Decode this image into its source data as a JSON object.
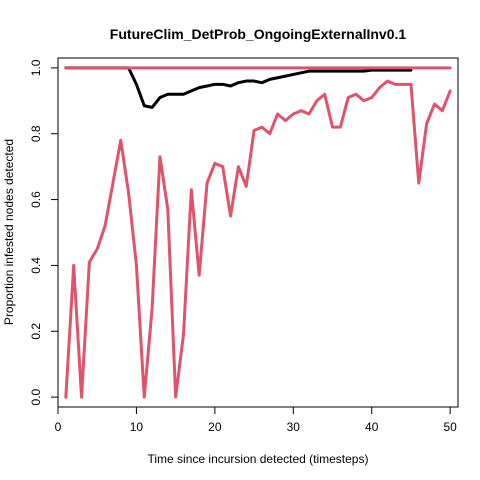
{
  "chart_data": {
    "type": "line",
    "title": "FutureClim_DetProb_OngoingExternalInv0.1",
    "xlabel": "Time since incursion detected (timesteps)",
    "ylabel": "Proportion infested nodes detected",
    "xlim": [
      0,
      51
    ],
    "ylim": [
      -0.03,
      1.03
    ],
    "xticks": [
      0,
      10,
      20,
      30,
      40,
      50
    ],
    "yticks": [
      0.0,
      0.2,
      0.4,
      0.6,
      0.8,
      1.0
    ],
    "xtick_labels": [
      "0",
      "10",
      "20",
      "30",
      "40",
      "50"
    ],
    "ytick_labels": [
      "0.0",
      "0.2",
      "0.4",
      "0.6",
      "0.8",
      "1.0"
    ],
    "grid": false,
    "legend": "none",
    "series": [
      {
        "color": "#000000",
        "x": [
          1,
          9,
          10,
          11,
          12,
          13,
          14,
          15,
          16,
          17,
          18,
          19,
          20,
          21,
          22,
          23,
          24,
          25,
          26,
          27,
          28,
          29,
          30,
          31,
          32,
          33,
          34,
          35,
          36,
          37,
          38,
          39,
          40,
          41,
          42,
          43,
          44,
          45
        ],
        "values": [
          1.0,
          1.0,
          0.95,
          0.885,
          0.88,
          0.91,
          0.92,
          0.92,
          0.92,
          0.93,
          0.94,
          0.945,
          0.95,
          0.95,
          0.945,
          0.955,
          0.96,
          0.96,
          0.955,
          0.965,
          0.97,
          0.975,
          0.98,
          0.985,
          0.99,
          0.99,
          0.99,
          0.99,
          0.99,
          0.99,
          0.99,
          0.99,
          0.993,
          0.993,
          0.993,
          0.993,
          0.993,
          0.993
        ]
      },
      {
        "color": "#DF536B",
        "x": [
          1,
          50
        ],
        "values": [
          1.0,
          1.0
        ]
      },
      {
        "color": "#DF536B",
        "x": [
          1,
          2,
          3,
          4,
          5,
          6,
          7,
          8,
          9,
          10,
          11,
          12,
          13,
          14,
          15,
          16,
          17,
          18,
          19,
          20,
          21,
          22,
          23,
          24,
          25,
          26,
          27,
          28,
          29,
          30,
          31,
          32,
          33,
          34,
          35,
          36,
          37,
          38,
          39,
          40,
          41,
          42,
          43,
          44,
          45,
          46,
          47,
          48,
          49,
          50
        ],
        "values": [
          0.0,
          0.4,
          0.0,
          0.41,
          0.45,
          0.52,
          0.65,
          0.78,
          0.62,
          0.4,
          0.0,
          0.27,
          0.73,
          0.57,
          0.0,
          0.19,
          0.63,
          0.37,
          0.65,
          0.71,
          0.7,
          0.55,
          0.7,
          0.64,
          0.81,
          0.82,
          0.8,
          0.86,
          0.84,
          0.86,
          0.87,
          0.86,
          0.9,
          0.92,
          0.82,
          0.82,
          0.91,
          0.92,
          0.9,
          0.91,
          0.94,
          0.96,
          0.95,
          0.95,
          0.95,
          0.65,
          0.83,
          0.89,
          0.87,
          0.93
        ]
      }
    ]
  }
}
